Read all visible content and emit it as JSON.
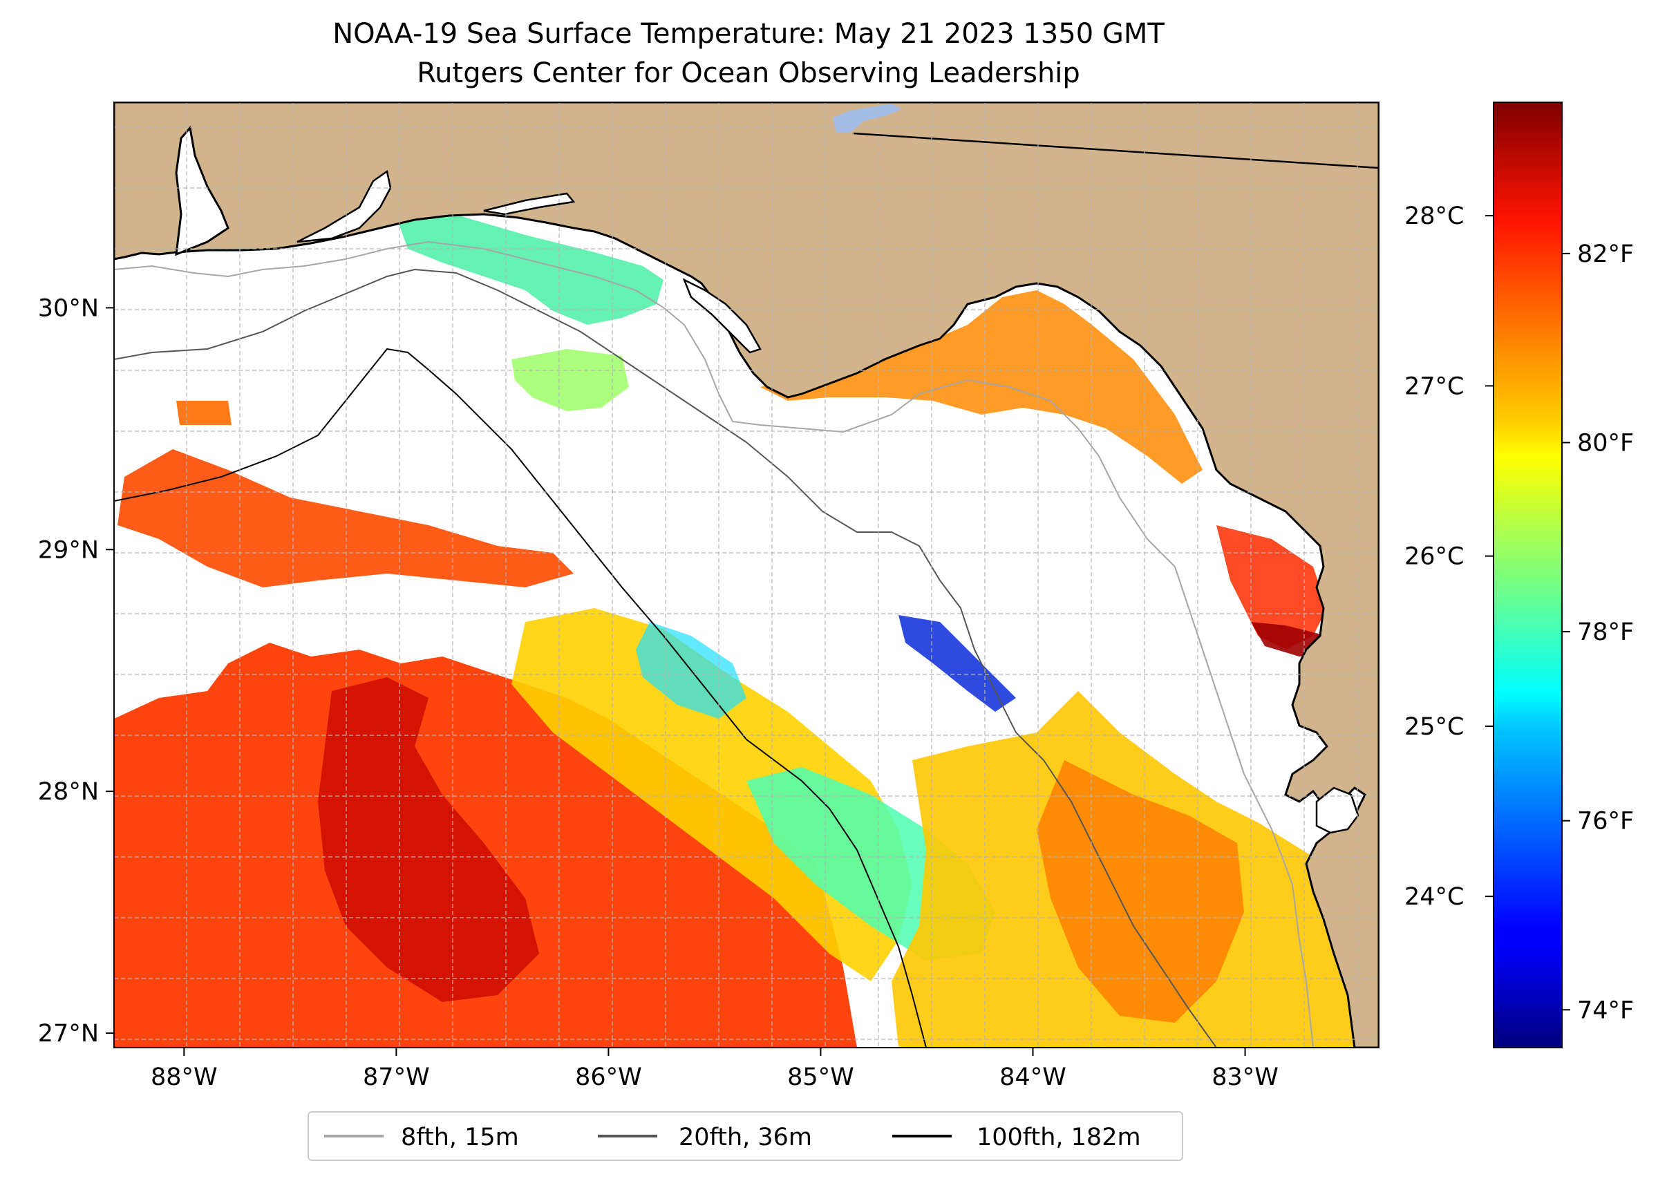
{
  "title": {
    "line1": "NOAA-19 Sea Surface Temperature: May 21 2023 1350 GMT",
    "line2": "Rutgers Center for Ocean Observing Leadership"
  },
  "map": {
    "lon_range": [
      -88.33,
      -82.37
    ],
    "lat_range": [
      26.94,
      30.85
    ],
    "lon_ticks": [
      {
        "value": -88,
        "label": "88°W"
      },
      {
        "value": -87,
        "label": "87°W"
      },
      {
        "value": -86,
        "label": "86°W"
      },
      {
        "value": -85,
        "label": "85°W"
      },
      {
        "value": -84,
        "label": "84°W"
      },
      {
        "value": -83,
        "label": "83°W"
      }
    ],
    "lat_ticks": [
      {
        "value": 27,
        "label": "27°N"
      },
      {
        "value": 28,
        "label": "28°N"
      },
      {
        "value": 29,
        "label": "29°N"
      },
      {
        "value": 30,
        "label": "30°N"
      }
    ],
    "grid": true,
    "colors": {
      "land": "#d2b48c",
      "coast": "#000000",
      "grid": "#b4b4b4",
      "lake": "#a4bde6"
    }
  },
  "colorbar": {
    "colormap": "jet",
    "fahrenheit_range": [
      73.6,
      83.6
    ],
    "fahrenheit_ticks": [
      {
        "value": 74,
        "label": "74°F"
      },
      {
        "value": 76,
        "label": "76°F"
      },
      {
        "value": 78,
        "label": "78°F"
      },
      {
        "value": 80,
        "label": "80°F"
      },
      {
        "value": 82,
        "label": "82°F"
      }
    ],
    "celsius_ticks": [
      {
        "value": 24,
        "label": "24°C"
      },
      {
        "value": 25,
        "label": "25°C"
      },
      {
        "value": 26,
        "label": "26°C"
      },
      {
        "value": 27,
        "label": "27°C"
      },
      {
        "value": 28,
        "label": "28°C"
      }
    ]
  },
  "legend": {
    "items": [
      {
        "label": "8fth, 15m",
        "color": "#a6a6a6"
      },
      {
        "label": "20fth, 36m",
        "color": "#555555"
      },
      {
        "label": "100fth, 182m",
        "color": "#000000"
      }
    ]
  }
}
